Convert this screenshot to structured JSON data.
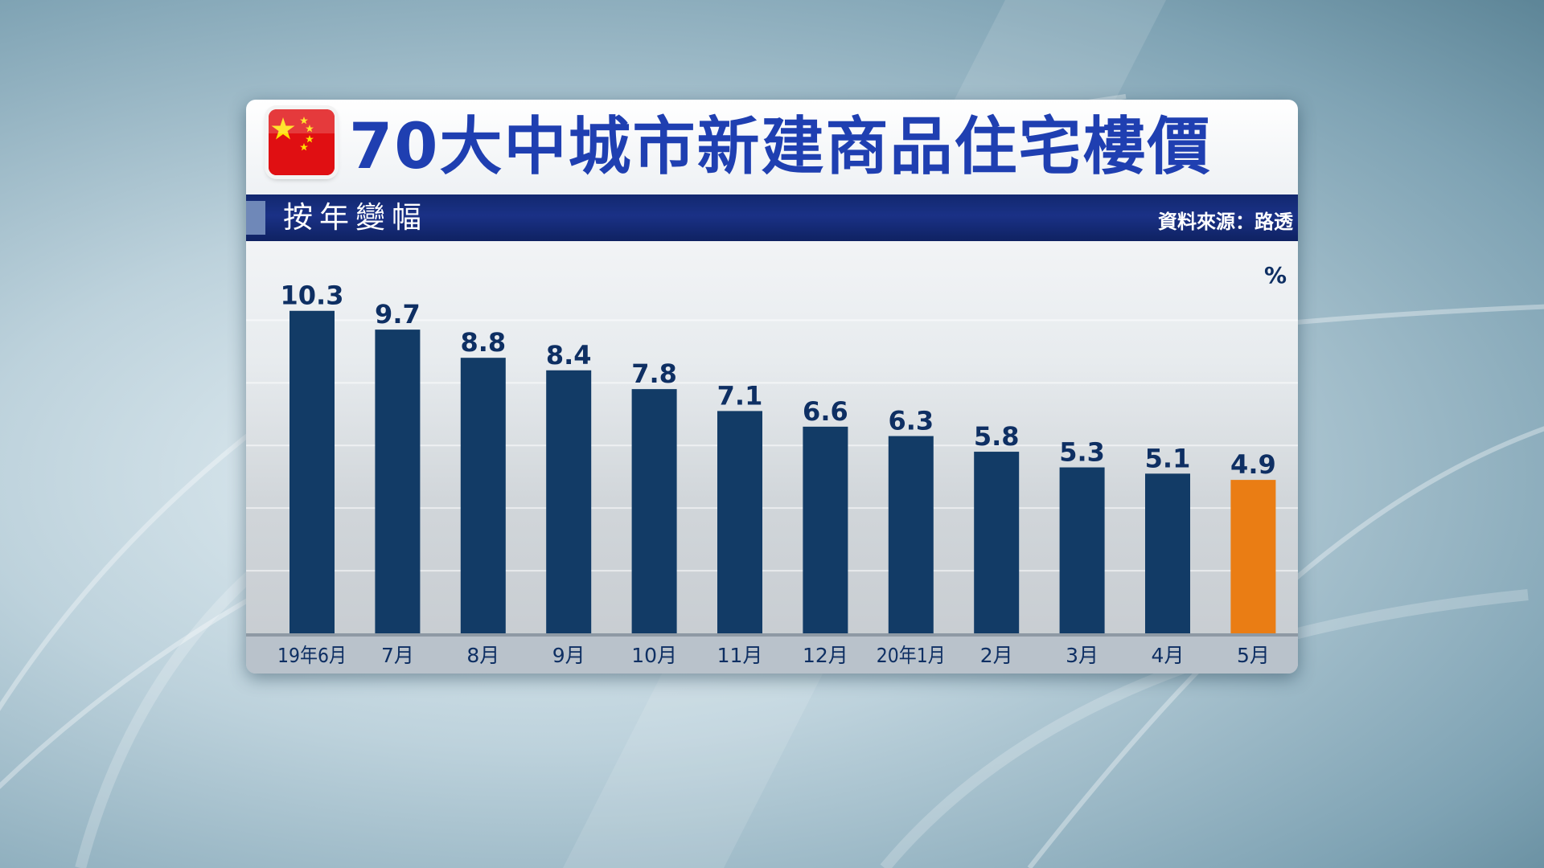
{
  "header": {
    "title": "70大中城市新建商品住宅樓價",
    "subtitle": "按年變幅",
    "source": "資料來源：路透",
    "flag_icon": "china-flag-icon"
  },
  "colors": {
    "bar": "#123b66",
    "highlight_bar": "#ea7d14",
    "title": "#1f3fb1",
    "subtitle_bar": "#1a3186"
  },
  "chart_data": {
    "type": "bar",
    "title": "70大中城市新建商品住宅樓價",
    "subtitle": "按年變幅",
    "unit": "%",
    "categories": [
      "19年6月",
      "7月",
      "8月",
      "9月",
      "10月",
      "11月",
      "12月",
      "20年1月",
      "2月",
      "3月",
      "4月",
      "5月"
    ],
    "values": [
      10.3,
      9.7,
      8.8,
      8.4,
      7.8,
      7.1,
      6.6,
      6.3,
      5.8,
      5.3,
      5.1,
      4.9
    ],
    "highlight_index": 11,
    "ylim": [
      0,
      11.5
    ],
    "grid": true,
    "legend": "none"
  }
}
